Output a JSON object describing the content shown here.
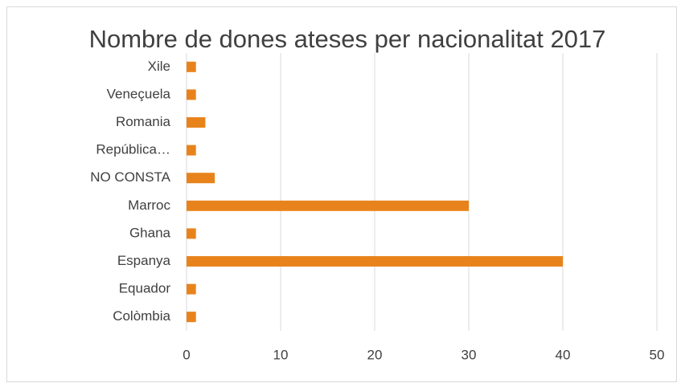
{
  "chart_data": {
    "type": "bar",
    "orientation": "horizontal",
    "title": "Nombre de dones ateses per nacionalitat 2017",
    "categories": [
      "Xile",
      "Veneçuela",
      "Romania",
      "República…",
      "NO CONSTA",
      "Marroc",
      "Ghana",
      "Espanya",
      "Equador",
      "Colòmbia"
    ],
    "values": [
      1,
      1,
      2,
      1,
      3,
      30,
      1,
      40,
      1,
      1
    ],
    "color": "#e8831c",
    "xlim": [
      0,
      50
    ],
    "xticks": [
      0,
      10,
      20,
      30,
      40,
      50
    ],
    "grid": true
  }
}
